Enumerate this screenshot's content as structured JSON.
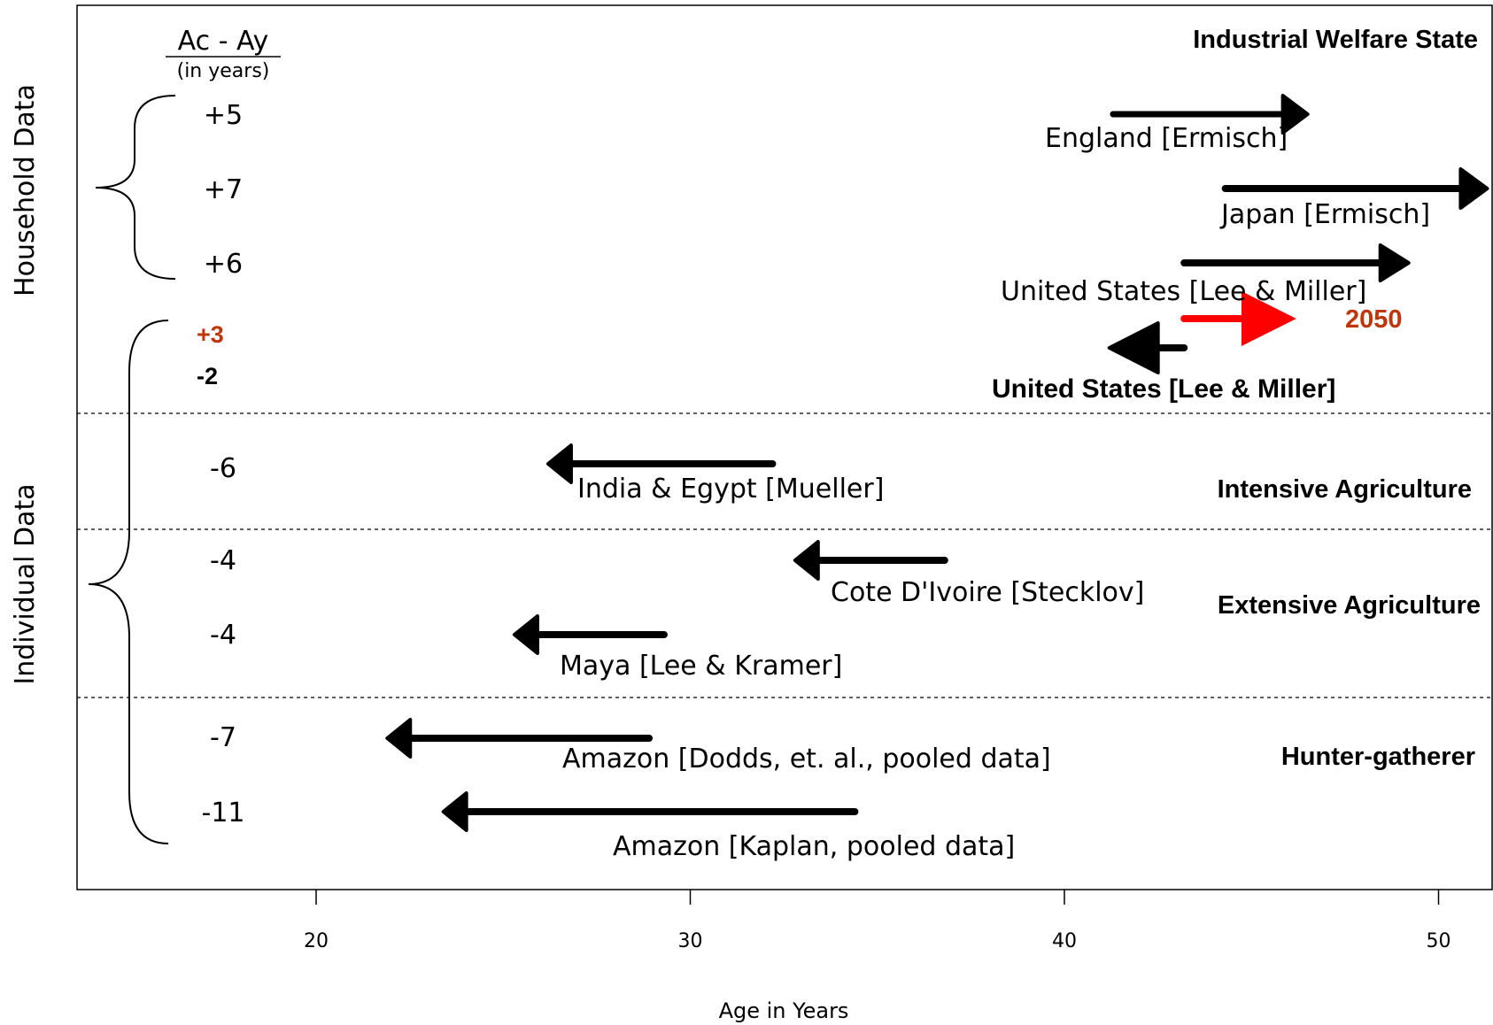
{
  "chart_data": {
    "type": "arrow-range",
    "title": "",
    "xlabel": "Age in Years",
    "xlim": [
      13.6,
      51.5
    ],
    "xticks": [
      20,
      30,
      40,
      50
    ],
    "column_header": "Ac - Ay",
    "column_subheader": "(in years)",
    "groups": [
      {
        "name": "Household Data"
      },
      {
        "name": "Individual Data"
      }
    ],
    "eras": [
      {
        "name": "Industrial Welfare State"
      },
      {
        "name": "Intensive Agriculture"
      },
      {
        "name": "Extensive Agriculture"
      },
      {
        "name": "Hunter-gatherer"
      }
    ],
    "series": [
      {
        "label": "England [Ermisch]",
        "delta": "+5",
        "ay": 41.3,
        "ac": 46.5,
        "color": "#000000",
        "group": "Household Data"
      },
      {
        "label": "Japan [Ermisch]",
        "delta": "+7",
        "ay": 44.3,
        "ac": 51.3,
        "color": "#000000",
        "group": "Household Data"
      },
      {
        "label": "United States [Lee & Miller]",
        "delta": "+6",
        "ay": 43.2,
        "ac": 49.2,
        "color": "#000000",
        "group": "Household Data"
      },
      {
        "label": "2050",
        "delta": "+3",
        "ay": 43.2,
        "ac": 46.2,
        "color": "#ff0000",
        "delta_color": "#c0360c",
        "group": "Individual Data"
      },
      {
        "label": "United States [Lee & Miller]",
        "delta": "-2",
        "ay": 43.2,
        "ac": 41.2,
        "color": "#000000",
        "group": "Individual Data"
      },
      {
        "label": "India & Egypt [Mueller]",
        "delta": "-6",
        "ay": 32.2,
        "ac": 26.2,
        "color": "#000000",
        "group": "Individual Data"
      },
      {
        "label": "Cote D'Ivoire [Stecklov]",
        "delta": "-4",
        "ay": 36.8,
        "ac": 32.8,
        "color": "#000000",
        "group": "Individual Data"
      },
      {
        "label": "Maya [Lee & Kramer]",
        "delta": "-4",
        "ay": 29.3,
        "ac": 25.3,
        "color": "#000000",
        "group": "Individual Data"
      },
      {
        "label": "Amazon [Dodds, et. al., pooled data]",
        "delta": "-7",
        "ay": 28.9,
        "ac": 21.9,
        "color": "#000000",
        "group": "Individual Data"
      },
      {
        "label": "Amazon [Kaplan, pooled data]",
        "delta": "-11",
        "ay": 34.4,
        "ac": 23.4,
        "color": "#000000",
        "group": "Individual Data"
      }
    ]
  }
}
